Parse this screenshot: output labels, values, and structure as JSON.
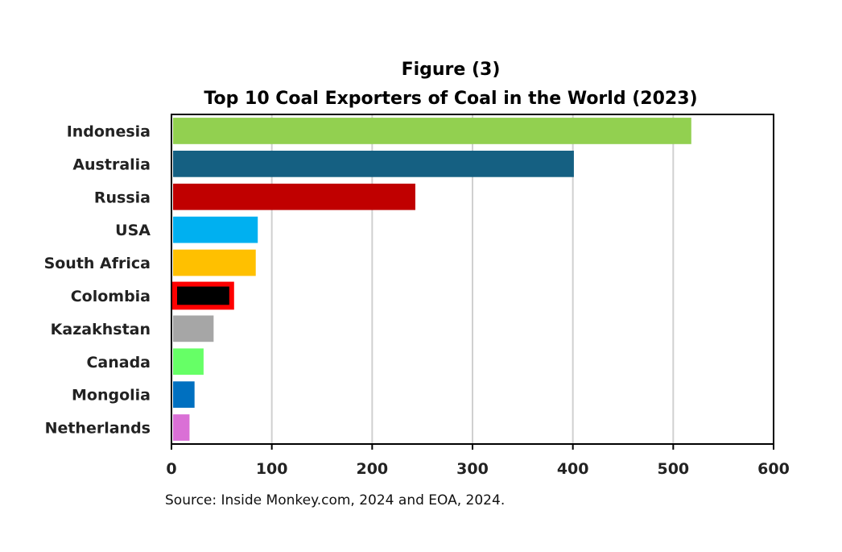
{
  "chart_data": {
    "type": "bar",
    "orientation": "horizontal",
    "title_line1": "Figure (3)",
    "title_line2": "Top 10 Coal Exporters of Coal in the World (2023)",
    "categories": [
      "Indonesia",
      "Australia",
      "Russia",
      "USA",
      "South Africa",
      "Colombia",
      "Kazakhstan",
      "Canada",
      "Mongolia",
      "Netherlands"
    ],
    "values": [
      518,
      401,
      243,
      86,
      84,
      60,
      42,
      32,
      23,
      18
    ],
    "colors": [
      "#92d050",
      "#156082",
      "#c00000",
      "#00b0f0",
      "#ffc000",
      "#000000",
      "#a6a6a6",
      "#66ff66",
      "#0070c0",
      "#da70d6"
    ],
    "highlight": {
      "category": "Colombia",
      "outline_color": "#ff0000"
    },
    "xlim": [
      0,
      600
    ],
    "xticks": [
      0,
      100,
      200,
      300,
      400,
      500,
      600
    ],
    "xlabel": "",
    "ylabel": "",
    "grid": "vertical",
    "legend": "none",
    "source": "Source: Inside Monkey.com, 2024 and EOA, 2024."
  }
}
